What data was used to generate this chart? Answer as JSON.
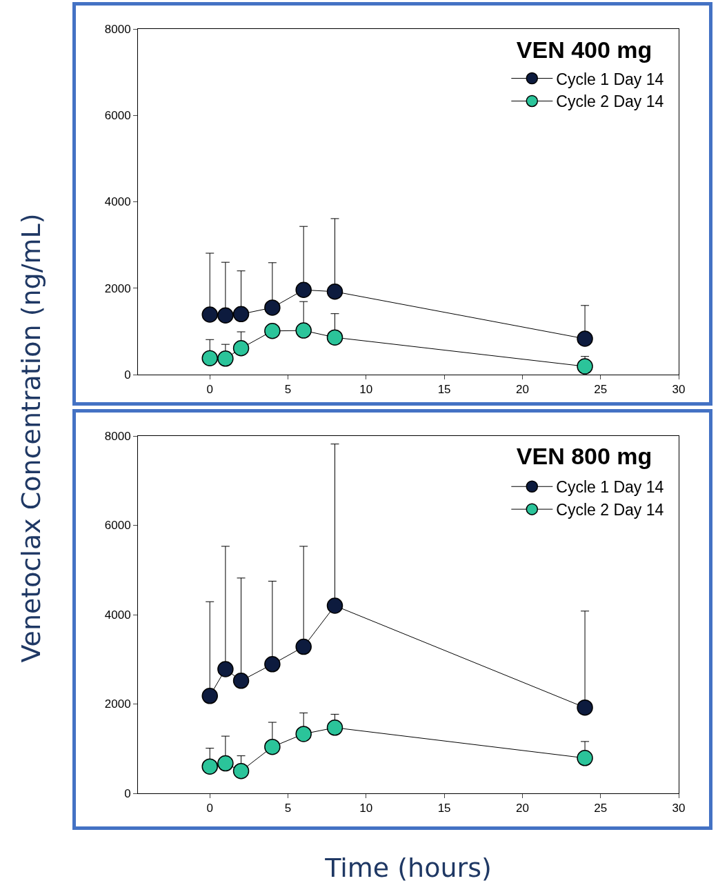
{
  "chart_data": [
    {
      "type": "line",
      "title": "VEN 400 mg",
      "ylabel": "Venetoclax Concentration (ng/mL)",
      "x": [
        0,
        1,
        2,
        4,
        6,
        8,
        24
      ],
      "xlim": [
        -4.6,
        30
      ],
      "xticks": [
        0,
        5,
        10,
        15,
        20,
        25,
        30
      ],
      "ylim": [
        0,
        8000
      ],
      "yticks": [
        0,
        2000,
        4000,
        6000,
        8000
      ],
      "grid": false,
      "legend": "top right",
      "marker": "circle",
      "line_style": "solid",
      "series": [
        {
          "name": "Cycle 1 Day 14",
          "color": "#0d1b3e",
          "values": [
            1390,
            1370,
            1400,
            1550,
            1960,
            1920,
            830
          ],
          "errors": [
            [
              1390,
              2810
            ],
            [
              1370,
              2600
            ],
            [
              1400,
              2400
            ],
            [
              1550,
              2590
            ],
            [
              1960,
              3430
            ],
            [
              1920,
              3610
            ],
            [
              830,
              1600
            ]
          ]
        },
        {
          "name": "Cycle 2 Day 14",
          "color": "#2bc49a",
          "values": [
            380,
            370,
            610,
            1010,
            1020,
            860,
            190
          ],
          "errors": [
            [
              380,
              810
            ],
            [
              370,
              700
            ],
            [
              610,
              990
            ],
            null,
            [
              1020,
              1690
            ],
            [
              860,
              1410
            ],
            [
              190,
              420
            ]
          ]
        }
      ]
    },
    {
      "type": "line",
      "title": "VEN 800 mg",
      "xlabel": "Time (hours)",
      "x": [
        0,
        1,
        2,
        4,
        6,
        8,
        24
      ],
      "xlim": [
        -4.6,
        30
      ],
      "xticks": [
        0,
        5,
        10,
        15,
        20,
        25,
        30
      ],
      "ylim": [
        0,
        8000
      ],
      "yticks": [
        0,
        2000,
        4000,
        6000,
        8000
      ],
      "grid": false,
      "legend": "top right",
      "marker": "circle",
      "line_style": "solid",
      "series": [
        {
          "name": "Cycle 1 Day 14",
          "color": "#0d1b3e",
          "values": [
            2180,
            2780,
            2520,
            2890,
            3280,
            4200,
            1920
          ],
          "errors": [
            [
              2180,
              4290
            ],
            [
              2780,
              5530
            ],
            [
              2520,
              4820
            ],
            [
              2890,
              4750
            ],
            [
              3280,
              5530
            ],
            [
              4200,
              7820
            ],
            [
              1920,
              4080
            ]
          ]
        },
        {
          "name": "Cycle 2 Day 14",
          "color": "#2bc49a",
          "values": [
            600,
            670,
            500,
            1040,
            1330,
            1470,
            790
          ],
          "errors": [
            [
              600,
              1010
            ],
            [
              670,
              1280
            ],
            [
              500,
              840
            ],
            [
              1040,
              1590
            ],
            [
              1330,
              1800
            ],
            [
              1470,
              1770
            ],
            [
              790,
              1160
            ]
          ]
        }
      ]
    }
  ]
}
